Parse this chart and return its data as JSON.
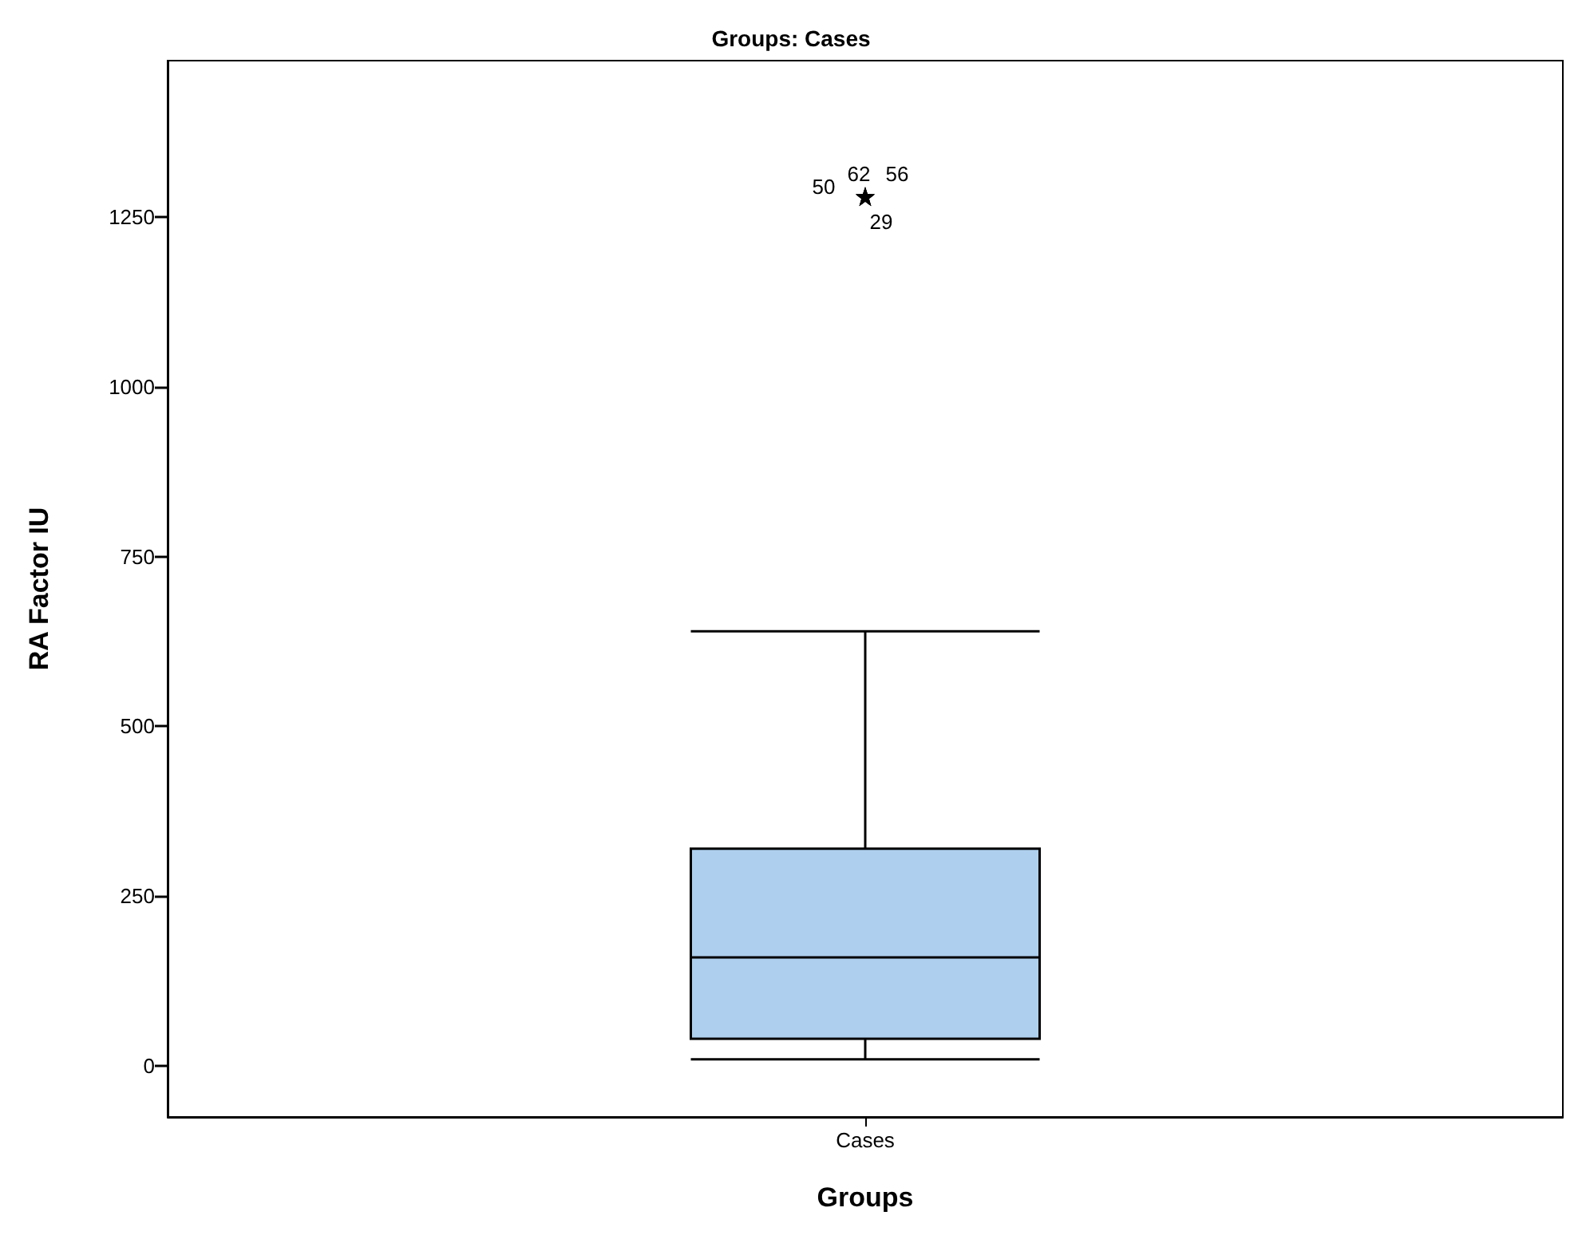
{
  "chart_data": {
    "type": "box",
    "title": "Groups: Cases",
    "xlabel": "Groups",
    "ylabel": "RA Factor IU",
    "categories": [
      "Cases"
    ],
    "boxes": [
      {
        "low": 10,
        "q1": 40,
        "median": 160,
        "q3": 320,
        "high": 640,
        "outliers": [
          1280,
          1280,
          1280,
          1280
        ]
      }
    ],
    "color": "#aecfee",
    "marker": "star",
    "grid": false,
    "ylim": [
      -75,
      1480
    ],
    "yticks": [
      0,
      250,
      500,
      750,
      1000,
      1250
    ],
    "annotations": [
      "50",
      "62",
      "56",
      "29"
    ]
  }
}
